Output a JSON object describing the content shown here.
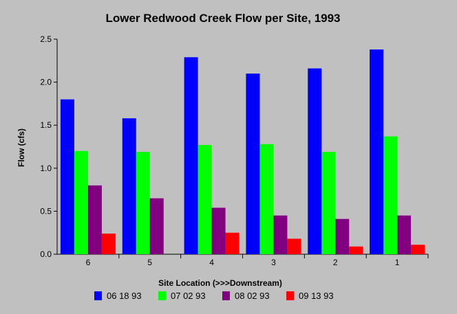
{
  "chart_data": {
    "type": "bar",
    "title": "Lower Redwood Creek Flow per Site, 1993",
    "xlabel": "Site Location (>>>Downstream)",
    "ylabel": "Flow (cfs)",
    "categories": [
      "6",
      "5",
      "4",
      "3",
      "2",
      "1"
    ],
    "ylim": [
      0,
      2.5
    ],
    "yticks": [
      "0.0",
      "0.5",
      "1.0",
      "1.5",
      "2.0",
      "2.5"
    ],
    "grid": false,
    "legend_position": "bottom",
    "series": [
      {
        "name": "06 18 93",
        "color": "#0000ff",
        "values": [
          1.8,
          1.58,
          2.29,
          2.1,
          2.16,
          2.38
        ]
      },
      {
        "name": "07 02 93",
        "color": "#00ff00",
        "values": [
          1.2,
          1.19,
          1.27,
          1.28,
          1.19,
          1.37
        ]
      },
      {
        "name": "08 02 93",
        "color": "#800080",
        "values": [
          0.8,
          0.65,
          0.54,
          0.45,
          0.41,
          0.45
        ]
      },
      {
        "name": "09 13 93",
        "color": "#ff0000",
        "values": [
          0.24,
          0.0,
          0.25,
          0.18,
          0.09,
          0.11
        ]
      }
    ]
  },
  "colors": {
    "background": "#c0c0c0",
    "plot_background": "#c0c0c0",
    "axis": "#000000"
  }
}
